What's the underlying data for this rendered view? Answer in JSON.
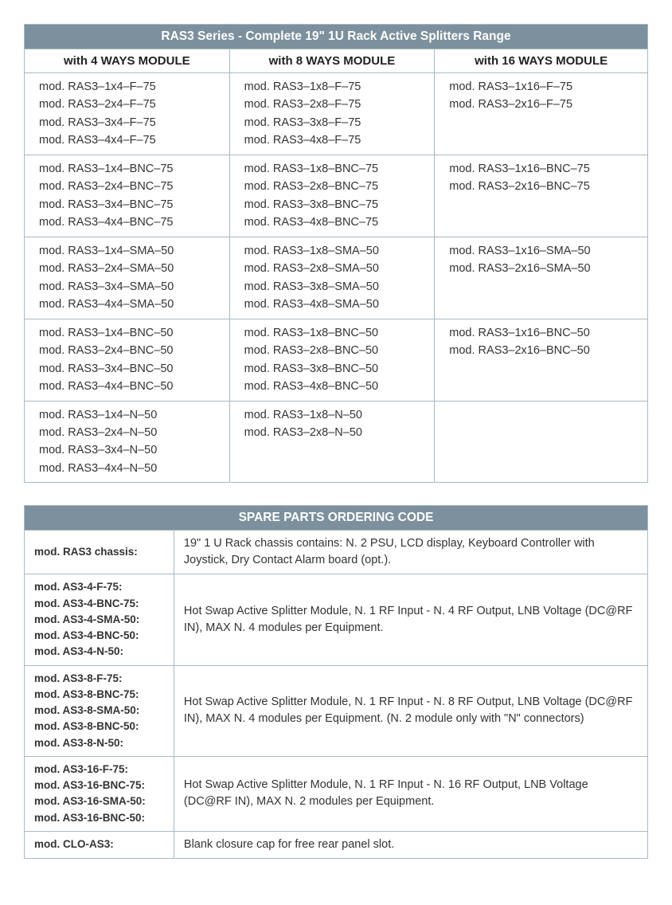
{
  "colors": {
    "header_bg": "#7c909d",
    "header_text": "#ffffff",
    "border": "#a9b9c1",
    "body_text": "#333333",
    "background": "#ffffff"
  },
  "range_table": {
    "title": "RAS3 Series  -  Complete 19\" 1U Rack Active Splitters Range",
    "columns": [
      "with 4 WAYS MODULE",
      "with 8 WAYS MODULE",
      "with 16 WAYS MODULE"
    ],
    "groups": [
      {
        "col1": [
          "mod. RAS3–1x4–F–75",
          "mod. RAS3–2x4–F–75",
          "mod. RAS3–3x4–F–75",
          "mod. RAS3–4x4–F–75"
        ],
        "col2": [
          "mod. RAS3–1x8–F–75",
          "mod. RAS3–2x8–F–75",
          "mod. RAS3–3x8–F–75",
          "mod. RAS3–4x8–F–75"
        ],
        "col3": [
          "mod. RAS3–1x16–F–75",
          "mod. RAS3–2x16–F–75"
        ]
      },
      {
        "col1": [
          "mod. RAS3–1x4–BNC–75",
          "mod. RAS3–2x4–BNC–75",
          "mod. RAS3–3x4–BNC–75",
          "mod. RAS3–4x4–BNC–75"
        ],
        "col2": [
          "mod. RAS3–1x8–BNC–75",
          "mod. RAS3–2x8–BNC–75",
          "mod. RAS3–3x8–BNC–75",
          "mod. RAS3–4x8–BNC–75"
        ],
        "col3": [
          "mod. RAS3–1x16–BNC–75",
          "mod. RAS3–2x16–BNC–75"
        ]
      },
      {
        "col1": [
          "mod. RAS3–1x4–SMA–50",
          "mod. RAS3–2x4–SMA–50",
          "mod. RAS3–3x4–SMA–50",
          "mod. RAS3–4x4–SMA–50"
        ],
        "col2": [
          "mod. RAS3–1x8–SMA–50",
          "mod. RAS3–2x8–SMA–50",
          "mod. RAS3–3x8–SMA–50",
          "mod. RAS3–4x8–SMA–50"
        ],
        "col3": [
          "mod. RAS3–1x16–SMA–50",
          "mod. RAS3–2x16–SMA–50"
        ]
      },
      {
        "col1": [
          "mod. RAS3–1x4–BNC–50",
          "mod. RAS3–2x4–BNC–50",
          "mod. RAS3–3x4–BNC–50",
          "mod. RAS3–4x4–BNC–50"
        ],
        "col2": [
          "mod. RAS3–1x8–BNC–50",
          "mod. RAS3–2x8–BNC–50",
          "mod. RAS3–3x8–BNC–50",
          "mod. RAS3–4x8–BNC–50"
        ],
        "col3": [
          "mod. RAS3–1x16–BNC–50",
          "mod. RAS3–2x16–BNC–50"
        ]
      },
      {
        "col1": [
          "mod. RAS3–1x4–N–50",
          "mod. RAS3–2x4–N–50",
          "mod. RAS3–3x4–N–50",
          "mod. RAS3–4x4–N–50"
        ],
        "col2": [
          "mod. RAS3–1x8–N–50",
          "mod. RAS3–2x8–N–50"
        ],
        "col3": []
      }
    ]
  },
  "spare_table": {
    "title": "SPARE PARTS ORDERING CODE",
    "rows": [
      {
        "labels": [
          "mod. RAS3 chassis:"
        ],
        "desc": "19\" 1 U Rack chassis contains: N. 2 PSU, LCD display, Keyboard Controller with Joystick, Dry Contact Alarm board (opt.)."
      },
      {
        "labels": [
          "mod. AS3-4-F-75:",
          "mod. AS3-4-BNC-75:",
          "mod. AS3-4-SMA-50:",
          "mod. AS3-4-BNC-50:",
          "mod. AS3-4-N-50:"
        ],
        "desc": "Hot Swap Active Splitter Module, N. 1 RF Input - N. 4 RF Output, LNB Voltage (DC@RF IN), MAX N. 4 modules per Equipment."
      },
      {
        "labels": [
          "mod. AS3-8-F-75:",
          "mod. AS3-8-BNC-75:",
          "mod. AS3-8-SMA-50:",
          "mod. AS3-8-BNC-50:",
          "mod. AS3-8-N-50:"
        ],
        "desc": "Hot Swap Active Splitter Module, N. 1 RF Input - N. 8 RF Output, LNB Voltage (DC@RF IN), MAX N. 4 modules per Equipment. (N. 2 module only with \"N\" connectors)"
      },
      {
        "labels": [
          "mod. AS3-16-F-75:",
          "mod. AS3-16-BNC-75:",
          "mod. AS3-16-SMA-50:",
          "mod. AS3-16-BNC-50:"
        ],
        "desc": "Hot Swap Active Splitter Module, N. 1 RF Input - N. 16 RF Output, LNB Voltage (DC@RF IN), MAX N. 2 modules per Equipment."
      },
      {
        "labels": [
          "mod. CLO-AS3:"
        ],
        "desc": "Blank closure cap for free rear panel slot."
      }
    ]
  }
}
